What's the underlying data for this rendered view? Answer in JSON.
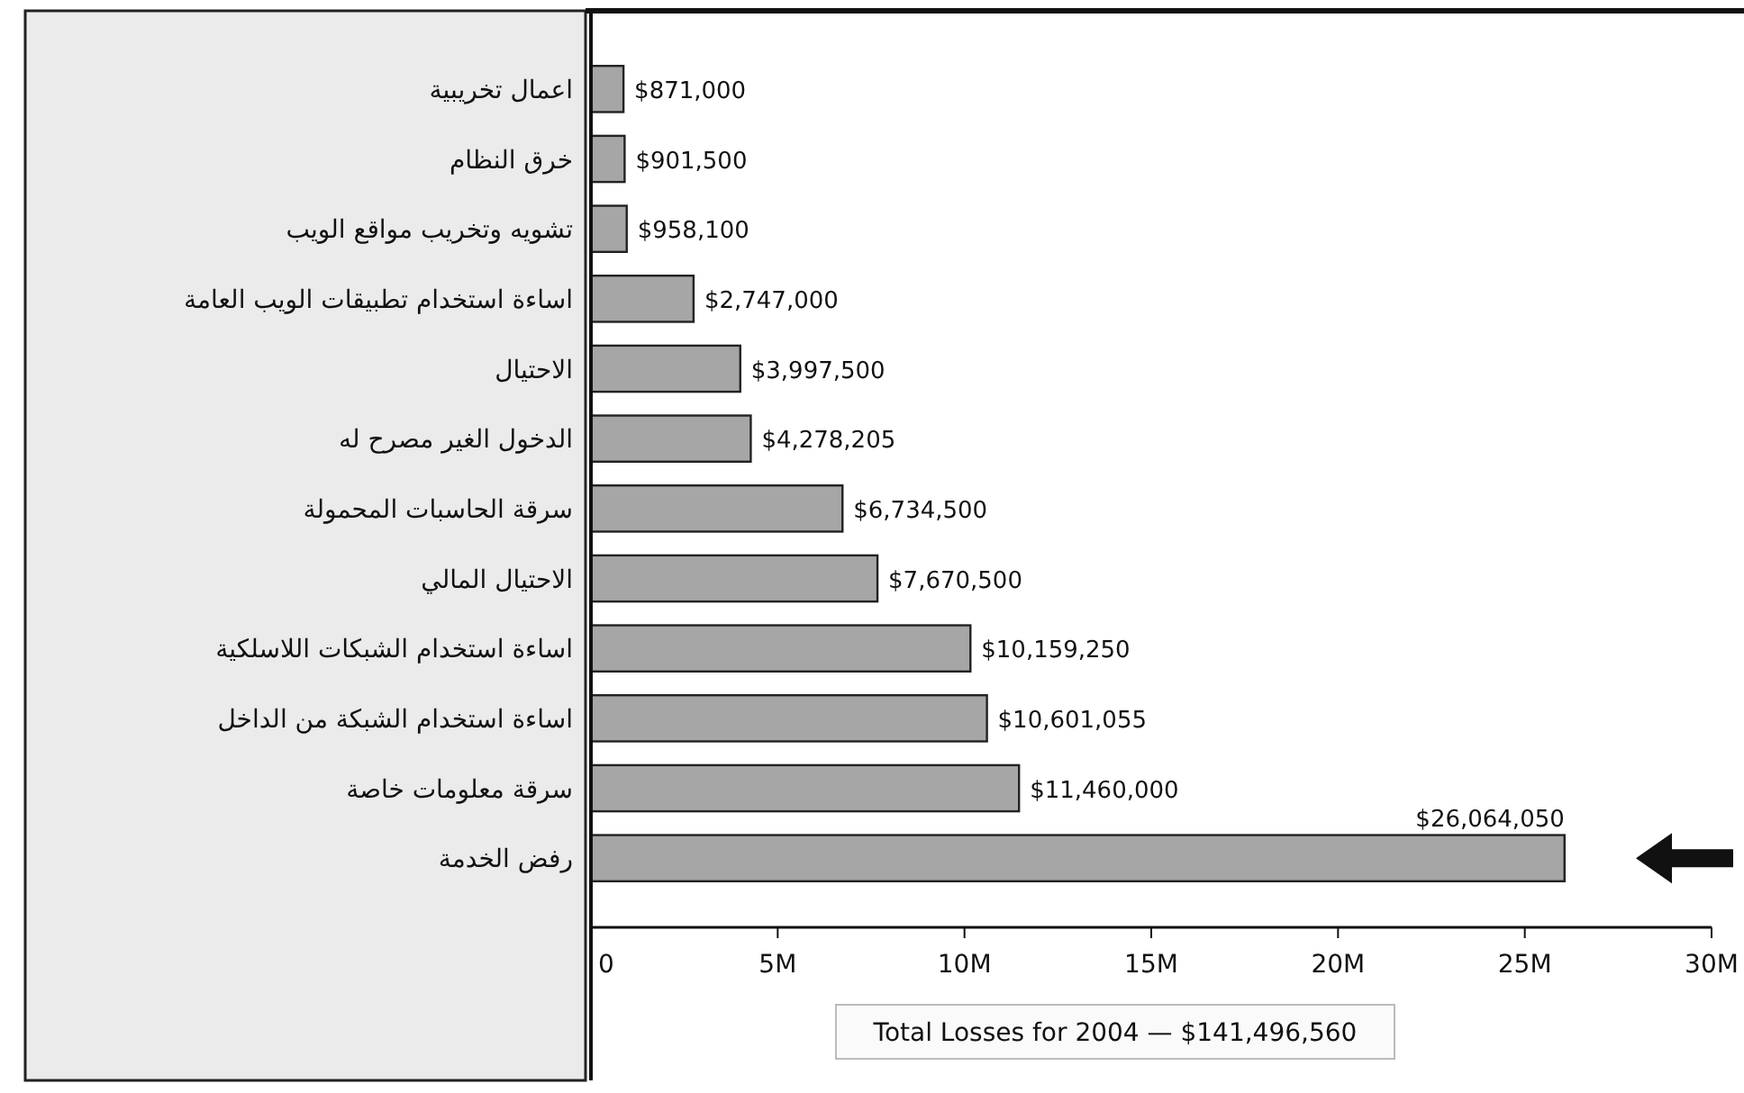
{
  "chart_data": {
    "type": "bar",
    "orientation": "horizontal",
    "categories": [
      "اعمال تخريبية",
      "خرق النظام",
      "تشويه وتخريب مواقع الويب",
      "اساءة استخدام تطبيقات الويب العامة",
      "الاحتيال",
      "الدخول الغير مصرح له",
      "سرقة الحاسبات المحمولة",
      "الاحتيال المالي",
      "اساءة استخدام الشبكات اللاسلكية",
      "اساءة استخدام الشبكة من الداخل",
      "سرقة معلومات خاصة",
      "رفض الخدمة"
    ],
    "values": [
      871000,
      901500,
      958100,
      2747000,
      3997500,
      4278205,
      6734500,
      7670500,
      10159250,
      10601055,
      11460000,
      26064050
    ],
    "value_labels": [
      "$871,000",
      "$901,500",
      "$958,100",
      "$2,747,000",
      "$3,997,500",
      "$4,278,205",
      "$6,734,500",
      "$7,670,500",
      "$10,159,250",
      "$10,601,055",
      "$11,460,000",
      "$26,064,050"
    ],
    "color": "#a6a6a6",
    "xlim": [
      0,
      30000000
    ],
    "xticks": [
      {
        "value": 0,
        "label": "0"
      },
      {
        "value": 5000000,
        "label": "5M"
      },
      {
        "value": 10000000,
        "label": "10M"
      },
      {
        "value": 15000000,
        "label": "15M"
      },
      {
        "value": 20000000,
        "label": "20M"
      },
      {
        "value": 25000000,
        "label": "25M"
      },
      {
        "value": 30000000,
        "label": "30M"
      }
    ],
    "annotations": [
      "Total Losses for 2004 — $141,496,560"
    ]
  }
}
